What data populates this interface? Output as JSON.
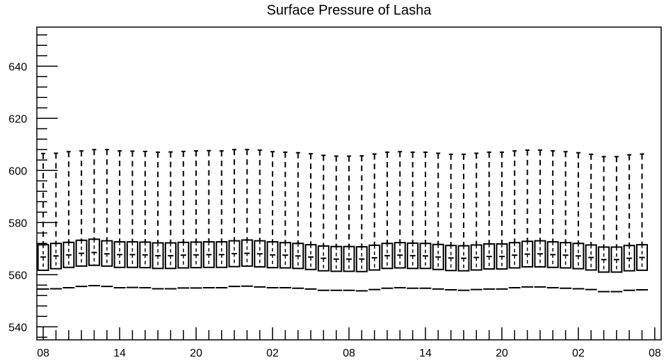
{
  "chart_data": {
    "type": "box",
    "title": "Surface Pressure of Lasha",
    "xlabel": "",
    "ylabel": "",
    "ylim": [
      535,
      655
    ],
    "yticks": [
      540,
      560,
      580,
      600,
      620,
      640
    ],
    "ytick_labels": [
      "540",
      "560",
      "580",
      "600",
      "620",
      "640"
    ],
    "xtick_labels": [
      "08",
      "14",
      "20",
      "02",
      "08",
      "14",
      "20",
      "02",
      "08"
    ],
    "xtick_positions": [
      0,
      6,
      12,
      18,
      24,
      30,
      36,
      42,
      48
    ],
    "xlim": [
      -0.5,
      48.5
    ],
    "grid": false,
    "legend": "none",
    "boxes": [
      {
        "x": 0,
        "low": 554.5,
        "q1": 561.7,
        "median": 566.8,
        "q3": 571.5,
        "high": 606.5
      },
      {
        "x": 1,
        "low": 554.6,
        "q1": 562.3,
        "median": 567.2,
        "q3": 572.0,
        "high": 606.6
      },
      {
        "x": 2,
        "low": 555.0,
        "q1": 562.8,
        "median": 567.6,
        "q3": 572.4,
        "high": 607.2
      },
      {
        "x": 3,
        "low": 555.5,
        "q1": 563.3,
        "median": 568.2,
        "q3": 573.2,
        "high": 607.5
      },
      {
        "x": 4,
        "low": 555.8,
        "q1": 563.6,
        "median": 568.5,
        "q3": 573.6,
        "high": 608.0
      },
      {
        "x": 5,
        "low": 555.5,
        "q1": 563.3,
        "median": 568.0,
        "q3": 573.0,
        "high": 608.0
      },
      {
        "x": 6,
        "low": 555.0,
        "q1": 562.8,
        "median": 567.7,
        "q3": 572.6,
        "high": 607.5
      },
      {
        "x": 7,
        "low": 555.1,
        "q1": 562.8,
        "median": 567.7,
        "q3": 572.6,
        "high": 607.4
      },
      {
        "x": 8,
        "low": 555.0,
        "q1": 562.7,
        "median": 567.6,
        "q3": 572.5,
        "high": 607.3
      },
      {
        "x": 9,
        "low": 554.6,
        "q1": 562.4,
        "median": 567.3,
        "q3": 572.2,
        "high": 607.0
      },
      {
        "x": 10,
        "low": 554.6,
        "q1": 562.4,
        "median": 567.3,
        "q3": 572.2,
        "high": 607.1
      },
      {
        "x": 11,
        "low": 554.9,
        "q1": 562.6,
        "median": 567.5,
        "q3": 572.4,
        "high": 607.3
      },
      {
        "x": 12,
        "low": 554.9,
        "q1": 562.7,
        "median": 567.6,
        "q3": 572.5,
        "high": 607.5
      },
      {
        "x": 13,
        "low": 555.0,
        "q1": 562.8,
        "median": 567.7,
        "q3": 572.6,
        "high": 607.6
      },
      {
        "x": 14,
        "low": 555.0,
        "q1": 562.8,
        "median": 567.7,
        "q3": 572.6,
        "high": 607.5
      },
      {
        "x": 15,
        "low": 555.5,
        "q1": 563.1,
        "median": 568.1,
        "q3": 573.0,
        "high": 608.0
      },
      {
        "x": 16,
        "low": 555.6,
        "q1": 563.3,
        "median": 568.2,
        "q3": 573.3,
        "high": 608.0
      },
      {
        "x": 17,
        "low": 555.3,
        "q1": 563.0,
        "median": 568.0,
        "q3": 573.0,
        "high": 607.8
      },
      {
        "x": 18,
        "low": 555.0,
        "q1": 562.7,
        "median": 567.6,
        "q3": 572.6,
        "high": 607.2
      },
      {
        "x": 19,
        "low": 555.0,
        "q1": 562.6,
        "median": 567.5,
        "q3": 572.3,
        "high": 607.0
      },
      {
        "x": 20,
        "low": 554.8,
        "q1": 562.4,
        "median": 567.2,
        "q3": 572.0,
        "high": 606.8
      },
      {
        "x": 21,
        "low": 554.5,
        "q1": 562.0,
        "median": 566.8,
        "q3": 571.5,
        "high": 606.4
      },
      {
        "x": 22,
        "low": 554.0,
        "q1": 561.5,
        "median": 566.3,
        "q3": 571.0,
        "high": 605.8
      },
      {
        "x": 23,
        "low": 554.0,
        "q1": 561.3,
        "median": 566.0,
        "q3": 570.8,
        "high": 605.5
      },
      {
        "x": 24,
        "low": 554.0,
        "q1": 561.3,
        "median": 566.0,
        "q3": 570.8,
        "high": 605.5
      },
      {
        "x": 25,
        "low": 553.8,
        "q1": 561.2,
        "median": 566.0,
        "q3": 570.7,
        "high": 605.6
      },
      {
        "x": 26,
        "low": 554.3,
        "q1": 561.8,
        "median": 566.5,
        "q3": 571.3,
        "high": 606.3
      },
      {
        "x": 27,
        "low": 554.8,
        "q1": 562.4,
        "median": 567.3,
        "q3": 572.0,
        "high": 607.0
      },
      {
        "x": 28,
        "low": 555.0,
        "q1": 562.6,
        "median": 567.5,
        "q3": 572.3,
        "high": 607.2
      },
      {
        "x": 29,
        "low": 554.8,
        "q1": 562.4,
        "median": 567.3,
        "q3": 572.1,
        "high": 607.0
      },
      {
        "x": 30,
        "low": 554.8,
        "q1": 562.4,
        "median": 567.2,
        "q3": 572.0,
        "high": 607.0
      },
      {
        "x": 31,
        "low": 554.5,
        "q1": 562.0,
        "median": 566.8,
        "q3": 571.6,
        "high": 606.6
      },
      {
        "x": 32,
        "low": 554.2,
        "q1": 561.6,
        "median": 566.4,
        "q3": 571.2,
        "high": 606.2
      },
      {
        "x": 33,
        "low": 554.0,
        "q1": 561.5,
        "median": 566.3,
        "q3": 571.1,
        "high": 606.2
      },
      {
        "x": 34,
        "low": 554.3,
        "q1": 561.8,
        "median": 566.6,
        "q3": 571.4,
        "high": 606.6
      },
      {
        "x": 35,
        "low": 554.5,
        "q1": 562.2,
        "median": 567.0,
        "q3": 571.8,
        "high": 607.0
      },
      {
        "x": 36,
        "low": 554.5,
        "q1": 562.2,
        "median": 567.0,
        "q3": 571.8,
        "high": 607.0
      },
      {
        "x": 37,
        "low": 555.0,
        "q1": 562.6,
        "median": 567.5,
        "q3": 572.3,
        "high": 607.5
      },
      {
        "x": 38,
        "low": 555.3,
        "q1": 563.0,
        "median": 567.9,
        "q3": 572.8,
        "high": 607.8
      },
      {
        "x": 39,
        "low": 555.3,
        "q1": 563.0,
        "median": 568.0,
        "q3": 573.0,
        "high": 607.8
      },
      {
        "x": 40,
        "low": 555.0,
        "q1": 562.8,
        "median": 567.7,
        "q3": 572.6,
        "high": 607.5
      },
      {
        "x": 41,
        "low": 554.8,
        "q1": 562.6,
        "median": 567.5,
        "q3": 572.3,
        "high": 607.2
      },
      {
        "x": 42,
        "low": 554.6,
        "q1": 562.3,
        "median": 567.2,
        "q3": 572.0,
        "high": 606.8
      },
      {
        "x": 43,
        "low": 554.3,
        "q1": 561.8,
        "median": 566.6,
        "q3": 571.4,
        "high": 606.2
      },
      {
        "x": 44,
        "low": 553.5,
        "q1": 561.0,
        "median": 565.8,
        "q3": 570.6,
        "high": 605.3
      },
      {
        "x": 45,
        "low": 553.5,
        "q1": 561.0,
        "median": 565.8,
        "q3": 570.6,
        "high": 605.3
      },
      {
        "x": 46,
        "low": 554.0,
        "q1": 561.5,
        "median": 566.3,
        "q3": 571.2,
        "high": 606.0
      },
      {
        "x": 47,
        "low": 554.2,
        "q1": 561.7,
        "median": 566.6,
        "q3": 571.5,
        "high": 606.3
      }
    ]
  }
}
